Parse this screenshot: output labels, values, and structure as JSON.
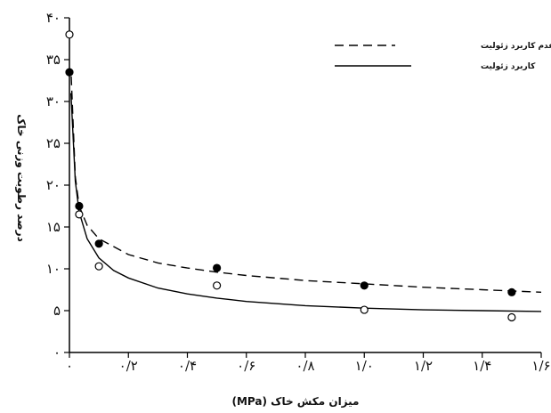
{
  "chart_data": {
    "type": "scatter",
    "xlabel": "میزان مکش خاک (MPa)",
    "ylabel": "درصد رطوبت وزنی خاک",
    "xlim": [
      0,
      1.6
    ],
    "ylim": [
      0,
      40
    ],
    "x_ticks": [
      {
        "value": 0,
        "label": "۰"
      },
      {
        "value": 0.2,
        "label": "۰/۲"
      },
      {
        "value": 0.4,
        "label": "۰/۴"
      },
      {
        "value": 0.6,
        "label": "۰/۶"
      },
      {
        "value": 0.8,
        "label": "۰/۸"
      },
      {
        "value": 1.0,
        "label": "۱/۰"
      },
      {
        "value": 1.2,
        "label": "۱/۲"
      },
      {
        "value": 1.4,
        "label": "۱/۴"
      },
      {
        "value": 1.6,
        "label": "۱/۶"
      }
    ],
    "y_ticks": [
      {
        "value": 0,
        "label": "۰"
      },
      {
        "value": 5,
        "label": "۵"
      },
      {
        "value": 10,
        "label": "۱۰"
      },
      {
        "value": 15,
        "label": "۱۵"
      },
      {
        "value": 20,
        "label": "۲۰"
      },
      {
        "value": 25,
        "label": "۲۵"
      },
      {
        "value": 30,
        "label": "۳۰"
      },
      {
        "value": 35,
        "label": "۳۵"
      },
      {
        "value": 40,
        "label": "۴۰"
      }
    ],
    "grid": false,
    "legend_position": "top-right",
    "series": [
      {
        "name": "عدم کاربرد زئولیت",
        "line_style": "dashed",
        "marker": "filled",
        "points": [
          {
            "x": 0.0,
            "y": 33.5
          },
          {
            "x": 0.033,
            "y": 17.5
          },
          {
            "x": 0.1,
            "y": 13.0
          },
          {
            "x": 0.5,
            "y": 10.1
          },
          {
            "x": 1.0,
            "y": 8.0
          },
          {
            "x": 1.5,
            "y": 7.2
          }
        ],
        "fit_curve": [
          {
            "x": 0.006,
            "y": 33.0
          },
          {
            "x": 0.02,
            "y": 21.0
          },
          {
            "x": 0.033,
            "y": 17.5
          },
          {
            "x": 0.06,
            "y": 15.2
          },
          {
            "x": 0.1,
            "y": 13.6
          },
          {
            "x": 0.2,
            "y": 11.7
          },
          {
            "x": 0.3,
            "y": 10.7
          },
          {
            "x": 0.4,
            "y": 10.1
          },
          {
            "x": 0.5,
            "y": 9.6
          },
          {
            "x": 0.6,
            "y": 9.2
          },
          {
            "x": 0.8,
            "y": 8.6
          },
          {
            "x": 1.0,
            "y": 8.2
          },
          {
            "x": 1.2,
            "y": 7.8
          },
          {
            "x": 1.4,
            "y": 7.5
          },
          {
            "x": 1.6,
            "y": 7.2
          }
        ]
      },
      {
        "name": "کاربرد زئولیت",
        "line_style": "solid",
        "marker": "open",
        "points": [
          {
            "x": 0.0,
            "y": 38.0
          },
          {
            "x": 0.033,
            "y": 16.5
          },
          {
            "x": 0.1,
            "y": 10.3
          },
          {
            "x": 0.5,
            "y": 8.0
          },
          {
            "x": 1.0,
            "y": 5.1
          },
          {
            "x": 1.5,
            "y": 4.2
          }
        ],
        "fit_curve": [
          {
            "x": 0.005,
            "y": 31.0
          },
          {
            "x": 0.02,
            "y": 20.5
          },
          {
            "x": 0.033,
            "y": 16.8
          },
          {
            "x": 0.06,
            "y": 13.6
          },
          {
            "x": 0.1,
            "y": 11.3
          },
          {
            "x": 0.15,
            "y": 9.8
          },
          {
            "x": 0.2,
            "y": 8.9
          },
          {
            "x": 0.3,
            "y": 7.7
          },
          {
            "x": 0.4,
            "y": 7.0
          },
          {
            "x": 0.5,
            "y": 6.5
          },
          {
            "x": 0.6,
            "y": 6.1
          },
          {
            "x": 0.8,
            "y": 5.6
          },
          {
            "x": 1.0,
            "y": 5.3
          },
          {
            "x": 1.2,
            "y": 5.1
          },
          {
            "x": 1.4,
            "y": 5.0
          },
          {
            "x": 1.6,
            "y": 4.9
          }
        ]
      }
    ]
  }
}
